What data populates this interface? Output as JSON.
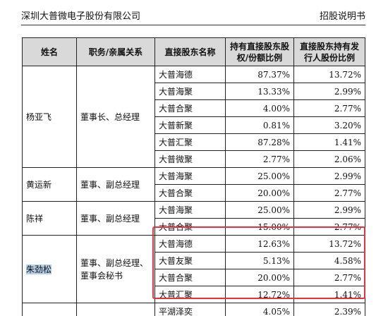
{
  "header": {
    "company": "深圳大普微电子股份有限公司",
    "doc_type": "招股说明书"
  },
  "table": {
    "columns": [
      "姓名",
      "职务/亲属关系",
      "直接股东名称",
      "持有直接股东股权/份额比例",
      "直接股东持有发行人股份比例"
    ],
    "groups": [
      {
        "name": "杨亚飞",
        "role": "董事长、总经理",
        "rows": [
          {
            "holder": "大普海德",
            "stake": "87.37%",
            "issuer": "13.72%"
          },
          {
            "holder": "大普海聚",
            "stake": "13.33%",
            "issuer": "2.99%"
          },
          {
            "holder": "大普合聚",
            "stake": "4.00%",
            "issuer": "2.77%"
          },
          {
            "holder": "大普新聚",
            "stake": "0.81%",
            "issuer": "3.20%"
          },
          {
            "holder": "大普汇聚",
            "stake": "87.28%",
            "issuer": "1.41%"
          },
          {
            "holder": "大普微聚",
            "stake": "2.77%",
            "issuer": "2.06%"
          }
        ]
      },
      {
        "name": "黄运新",
        "role": "董事、副总经理",
        "rows": [
          {
            "holder": "大普海聚",
            "stake": "25.00%",
            "issuer": "2.99%"
          },
          {
            "holder": "大普合聚",
            "stake": "20.00%",
            "issuer": "2.77%"
          }
        ]
      },
      {
        "name": "陈祥",
        "role": "董事、副总经理",
        "rows": [
          {
            "holder": "大普海聚",
            "stake": "25.00%",
            "issuer": "2.99%"
          },
          {
            "holder": "大普合聚",
            "stake": "15.00%",
            "issuer": "2.77%"
          }
        ]
      },
      {
        "name": "朱劲松",
        "role": "董事、副总经理、董事会秘书",
        "rows": [
          {
            "holder": "大普海德",
            "stake": "12.63%",
            "issuer": "13.72%"
          },
          {
            "holder": "大普友聚",
            "stake": "5.13%",
            "issuer": "4.58%"
          },
          {
            "holder": "大普合聚",
            "stake": "20.00%",
            "issuer": "2.77%"
          },
          {
            "holder": "大普汇聚",
            "stake": "12.72%",
            "issuer": "1.41%"
          }
        ]
      },
      {
        "name": "",
        "role": "",
        "rows": [
          {
            "holder": "平湖泽奕",
            "stake": "4.05%",
            "issuer": "2.39%"
          }
        ]
      }
    ]
  },
  "highlight_color": "#e6323c",
  "selection_color": "#b6cfe8"
}
